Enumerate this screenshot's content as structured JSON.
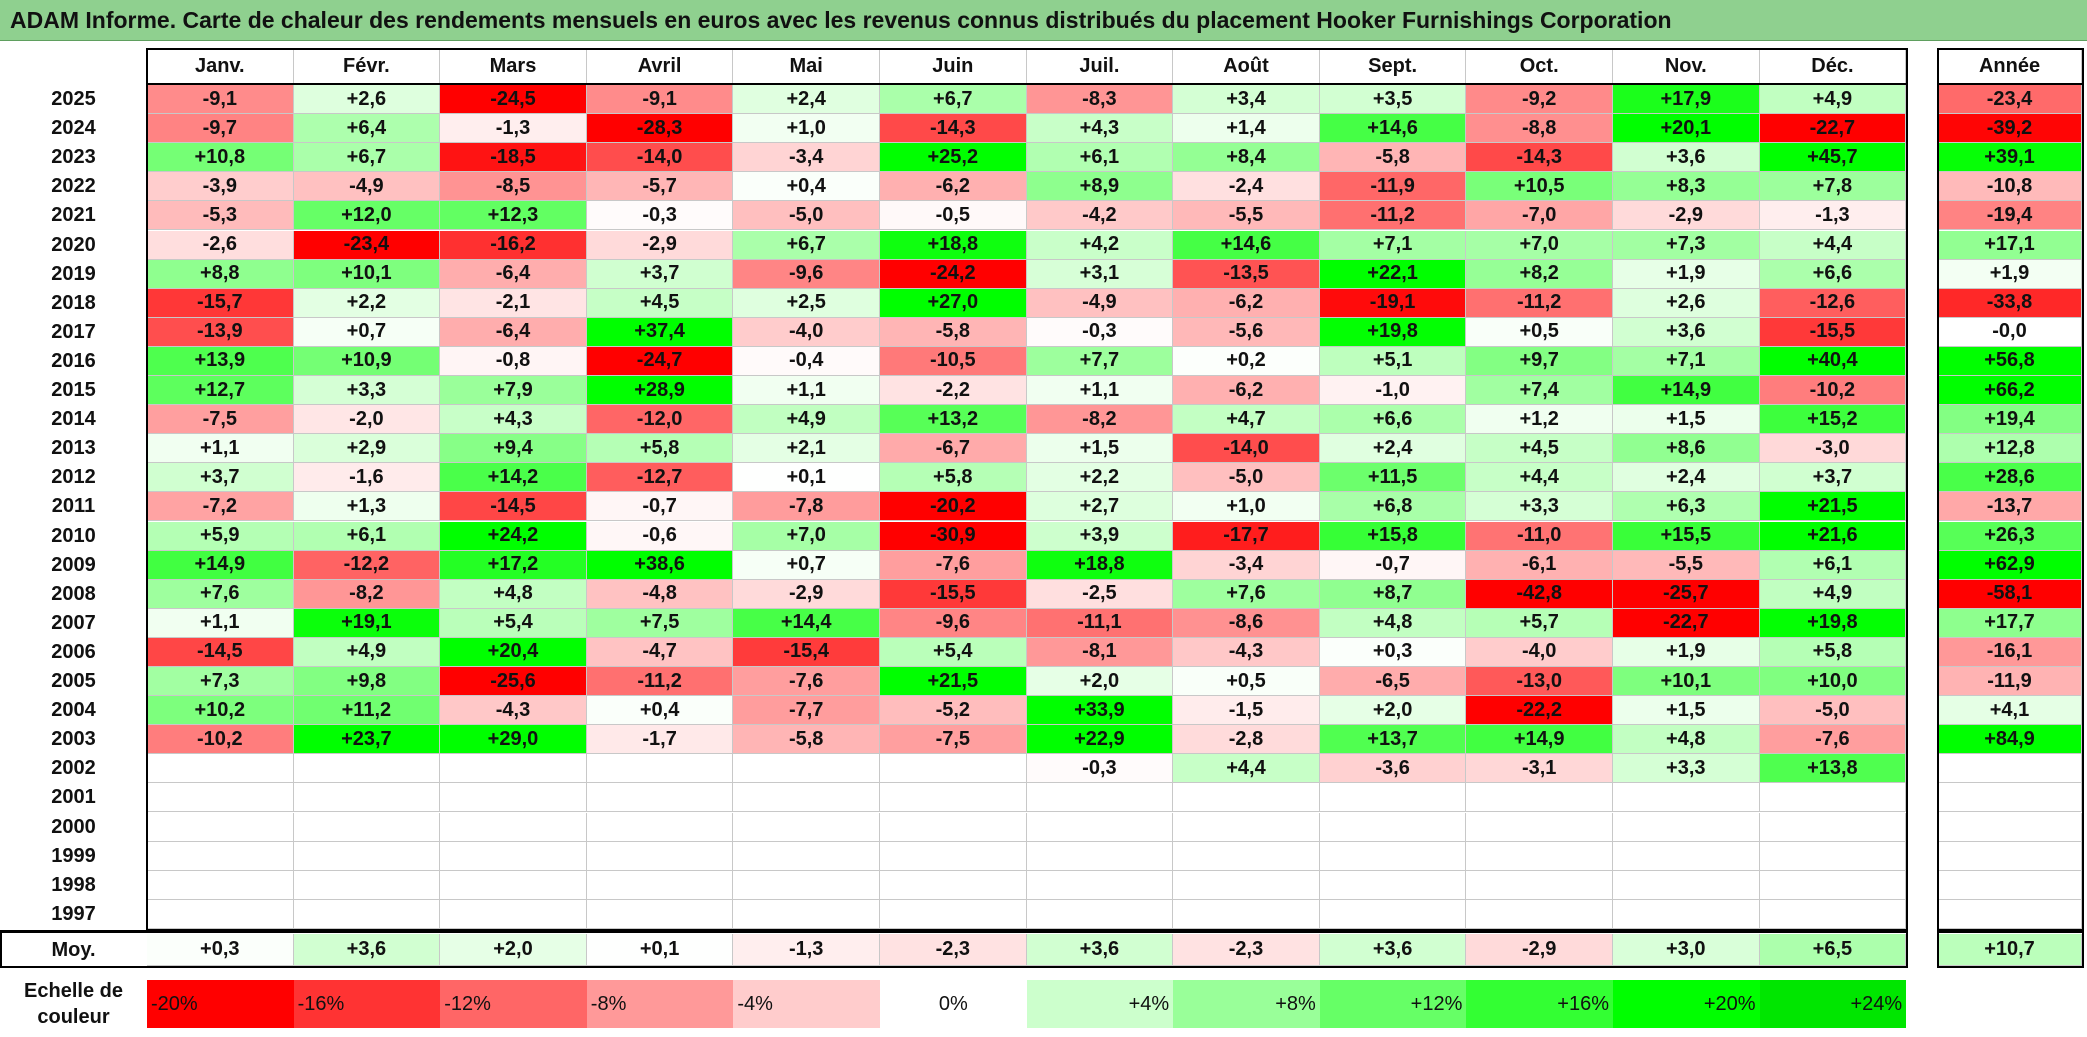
{
  "chart_data": {
    "type": "heatmap",
    "title": "ADAM Informe. Carte de chaleur des rendements mensuels en euros avec les revenus connus distribués du placement Hooker Furnishings Corporation",
    "months": [
      "Janv.",
      "Févr.",
      "Mars",
      "Avril",
      "Mai",
      "Juin",
      "Juil.",
      "Août",
      "Sept.",
      "Oct.",
      "Nov.",
      "Déc."
    ],
    "year_header": "Année",
    "rows": [
      {
        "year": "2025",
        "values": [
          "-9,1",
          "+2,6",
          "-24,5",
          "-9,1",
          "+2,4",
          "+6,7",
          "-8,3",
          "+3,4",
          "+3,5",
          "-9,2",
          "+17,9",
          "+4,9"
        ],
        "annual": "-23,4"
      },
      {
        "year": "2024",
        "values": [
          "-9,7",
          "+6,4",
          "-1,3",
          "-28,3",
          "+1,0",
          "-14,3",
          "+4,3",
          "+1,4",
          "+14,6",
          "-8,8",
          "+20,1",
          "-22,7"
        ],
        "annual": "-39,2"
      },
      {
        "year": "2023",
        "values": [
          "+10,8",
          "+6,7",
          "-18,5",
          "-14,0",
          "-3,4",
          "+25,2",
          "+6,1",
          "+8,4",
          "-5,8",
          "-14,3",
          "+3,6",
          "+45,7"
        ],
        "annual": "+39,1"
      },
      {
        "year": "2022",
        "values": [
          "-3,9",
          "-4,9",
          "-8,5",
          "-5,7",
          "+0,4",
          "-6,2",
          "+8,9",
          "-2,4",
          "-11,9",
          "+10,5",
          "+8,3",
          "+7,8"
        ],
        "annual": "-10,8"
      },
      {
        "year": "2021",
        "values": [
          "-5,3",
          "+12,0",
          "+12,3",
          "-0,3",
          "-5,0",
          "-0,5",
          "-4,2",
          "-5,5",
          "-11,2",
          "-7,0",
          "-2,9",
          "-1,3"
        ],
        "annual": "-19,4"
      },
      {
        "year": "2020",
        "values": [
          "-2,6",
          "-23,4",
          "-16,2",
          "-2,9",
          "+6,7",
          "+18,8",
          "+4,2",
          "+14,6",
          "+7,1",
          "+7,0",
          "+7,3",
          "+4,4"
        ],
        "annual": "+17,1"
      },
      {
        "year": "2019",
        "values": [
          "+8,8",
          "+10,1",
          "-6,4",
          "+3,7",
          "-9,6",
          "-24,2",
          "+3,1",
          "-13,5",
          "+22,1",
          "+8,2",
          "+1,9",
          "+6,6"
        ],
        "annual": "+1,9"
      },
      {
        "year": "2018",
        "values": [
          "-15,7",
          "+2,2",
          "-2,1",
          "+4,5",
          "+2,5",
          "+27,0",
          "-4,9",
          "-6,2",
          "-19,1",
          "-11,2",
          "+2,6",
          "-12,6"
        ],
        "annual": "-33,8"
      },
      {
        "year": "2017",
        "values": [
          "-13,9",
          "+0,7",
          "-6,4",
          "+37,4",
          "-4,0",
          "-5,8",
          "-0,3",
          "-5,6",
          "+19,8",
          "+0,5",
          "+3,6",
          "-15,5"
        ],
        "annual": "-0,0"
      },
      {
        "year": "2016",
        "values": [
          "+13,9",
          "+10,9",
          "-0,8",
          "-24,7",
          "-0,4",
          "-10,5",
          "+7,7",
          "+0,2",
          "+5,1",
          "+9,7",
          "+7,1",
          "+40,4"
        ],
        "annual": "+56,8"
      },
      {
        "year": "2015",
        "values": [
          "+12,7",
          "+3,3",
          "+7,9",
          "+28,9",
          "+1,1",
          "-2,2",
          "+1,1",
          "-6,2",
          "-1,0",
          "+7,4",
          "+14,9",
          "-10,2"
        ],
        "annual": "+66,2"
      },
      {
        "year": "2014",
        "values": [
          "-7,5",
          "-2,0",
          "+4,3",
          "-12,0",
          "+4,9",
          "+13,2",
          "-8,2",
          "+4,7",
          "+6,6",
          "+1,2",
          "+1,5",
          "+15,2"
        ],
        "annual": "+19,4"
      },
      {
        "year": "2013",
        "values": [
          "+1,1",
          "+2,9",
          "+9,4",
          "+5,8",
          "+2,1",
          "-6,7",
          "+1,5",
          "-14,0",
          "+2,4",
          "+4,5",
          "+8,6",
          "-3,0"
        ],
        "annual": "+12,8"
      },
      {
        "year": "2012",
        "values": [
          "+3,7",
          "-1,6",
          "+14,2",
          "-12,7",
          "+0,1",
          "+5,8",
          "+2,2",
          "-5,0",
          "+11,5",
          "+4,4",
          "+2,4",
          "+3,7"
        ],
        "annual": "+28,6"
      },
      {
        "year": "2011",
        "values": [
          "-7,2",
          "+1,3",
          "-14,5",
          "-0,7",
          "-7,8",
          "-20,2",
          "+2,7",
          "+1,0",
          "+6,8",
          "+3,3",
          "+6,3",
          "+21,5"
        ],
        "annual": "-13,7"
      },
      {
        "year": "2010",
        "values": [
          "+5,9",
          "+6,1",
          "+24,2",
          "-0,6",
          "+7,0",
          "-30,9",
          "+3,9",
          "-17,7",
          "+15,8",
          "-11,0",
          "+15,5",
          "+21,6"
        ],
        "annual": "+26,3"
      },
      {
        "year": "2009",
        "values": [
          "+14,9",
          "-12,2",
          "+17,2",
          "+38,6",
          "+0,7",
          "-7,6",
          "+18,8",
          "-3,4",
          "-0,7",
          "-6,1",
          "-5,5",
          "+6,1"
        ],
        "annual": "+62,9"
      },
      {
        "year": "2008",
        "values": [
          "+7,6",
          "-8,2",
          "+4,8",
          "-4,8",
          "-2,9",
          "-15,5",
          "-2,5",
          "+7,6",
          "+8,7",
          "-42,8",
          "-25,7",
          "+4,9"
        ],
        "annual": "-58,1"
      },
      {
        "year": "2007",
        "values": [
          "+1,1",
          "+19,1",
          "+5,4",
          "+7,5",
          "+14,4",
          "-9,6",
          "-11,1",
          "-8,6",
          "+4,8",
          "+5,7",
          "-22,7",
          "+19,8"
        ],
        "annual": "+17,7"
      },
      {
        "year": "2006",
        "values": [
          "-14,5",
          "+4,9",
          "+20,4",
          "-4,7",
          "-15,4",
          "+5,4",
          "-8,1",
          "-4,3",
          "+0,3",
          "-4,0",
          "+1,9",
          "+5,8"
        ],
        "annual": "-16,1"
      },
      {
        "year": "2005",
        "values": [
          "+7,3",
          "+9,8",
          "-25,6",
          "-11,2",
          "-7,6",
          "+21,5",
          "+2,0",
          "+0,5",
          "-6,5",
          "-13,0",
          "+10,1",
          "+10,0"
        ],
        "annual": "-11,9"
      },
      {
        "year": "2004",
        "values": [
          "+10,2",
          "+11,2",
          "-4,3",
          "+0,4",
          "-7,7",
          "-5,2",
          "+33,9",
          "-1,5",
          "+2,0",
          "-22,2",
          "+1,5",
          "-5,0"
        ],
        "annual": "+4,1"
      },
      {
        "year": "2003",
        "values": [
          "-10,2",
          "+23,7",
          "+29,0",
          "-1,7",
          "-5,8",
          "-7,5",
          "+22,9",
          "-2,8",
          "+13,7",
          "+14,9",
          "+4,8",
          "-7,6"
        ],
        "annual": "+84,9"
      },
      {
        "year": "2002",
        "values": [
          "",
          "",
          "",
          "",
          "",
          "",
          "-0,3",
          "+4,4",
          "-3,6",
          "-3,1",
          "+3,3",
          "+13,8"
        ],
        "annual": ""
      },
      {
        "year": "2001",
        "values": [
          "",
          "",
          "",
          "",
          "",
          "",
          "",
          "",
          "",
          "",
          "",
          ""
        ],
        "annual": ""
      },
      {
        "year": "2000",
        "values": [
          "",
          "",
          "",
          "",
          "",
          "",
          "",
          "",
          "",
          "",
          "",
          ""
        ],
        "annual": ""
      },
      {
        "year": "1999",
        "values": [
          "",
          "",
          "",
          "",
          "",
          "",
          "",
          "",
          "",
          "",
          "",
          ""
        ],
        "annual": ""
      },
      {
        "year": "1998",
        "values": [
          "",
          "",
          "",
          "",
          "",
          "",
          "",
          "",
          "",
          "",
          "",
          ""
        ],
        "annual": ""
      },
      {
        "year": "1997",
        "values": [
          "",
          "",
          "",
          "",
          "",
          "",
          "",
          "",
          "",
          "",
          "",
          ""
        ],
        "annual": ""
      }
    ],
    "average": {
      "label": "Moy.",
      "values": [
        "+0,3",
        "+3,6",
        "+2,0",
        "+0,1",
        "-1,3",
        "-2,3",
        "+3,6",
        "-2,3",
        "+3,6",
        "-2,9",
        "+3,0",
        "+6,5"
      ],
      "annual": "+10,7"
    },
    "color_scale": {
      "label_line1": "Echelle de",
      "label_line2": "couleur",
      "stops": [
        {
          "label": "-20%",
          "value": -20,
          "color": "#ff0000"
        },
        {
          "label": "-16%",
          "value": -16,
          "color": "#ff3333"
        },
        {
          "label": "-12%",
          "value": -12,
          "color": "#ff6666"
        },
        {
          "label": "-8%",
          "value": -8,
          "color": "#ff9999"
        },
        {
          "label": "-4%",
          "value": -4,
          "color": "#ffcccc"
        },
        {
          "label": "0%",
          "value": 0,
          "color": "#ffffff"
        },
        {
          "label": "+4%",
          "value": 4,
          "color": "#ccffcc"
        },
        {
          "label": "+8%",
          "value": 8,
          "color": "#99ff99"
        },
        {
          "label": "+12%",
          "value": 12,
          "color": "#66ff66"
        },
        {
          "label": "+16%",
          "value": 16,
          "color": "#33ff33"
        },
        {
          "label": "+20%",
          "value": 20,
          "color": "#00ff00"
        },
        {
          "label": "+24%",
          "value": 24,
          "color": "#00e600"
        }
      ]
    }
  }
}
